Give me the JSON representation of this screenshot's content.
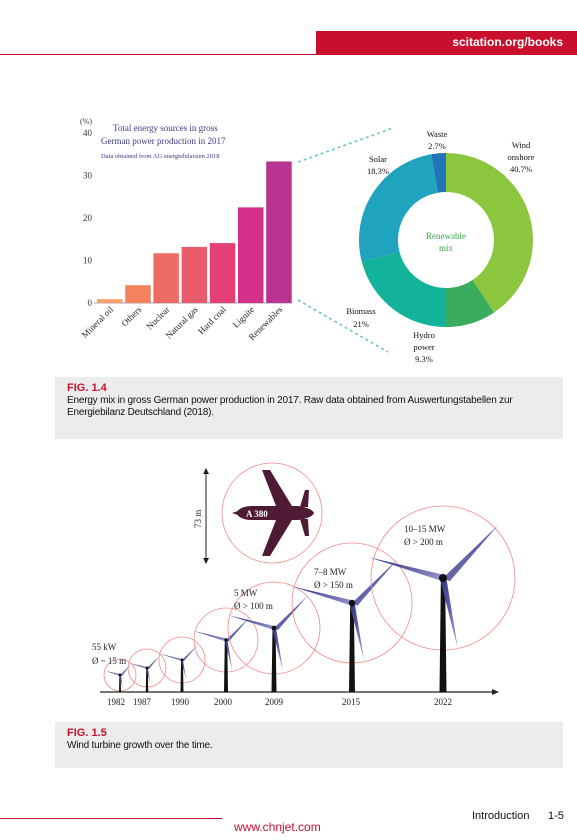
{
  "header": {
    "site": "scitation.org/books"
  },
  "fig14": {
    "label": "FIG. 1.4",
    "caption": "Energy mix in gross German power production in 2017. Raw data obtained from Auswertungstabellen zur Energiebilanz Deutschland (2018)."
  },
  "fig15": {
    "label": "FIG. 1.5",
    "caption": "Wind turbine growth over the time."
  },
  "footer": {
    "section": "Introduction",
    "page": "1-5",
    "watermark": "www.chnjet.com"
  },
  "chart_data": [
    {
      "type": "bar",
      "title": "Total energy sources in gross German power production in 2017",
      "subtitle": "Data obtained from AG energiebilanzen 2018",
      "ylabel": "(%)",
      "ylim": [
        0,
        40
      ],
      "yticks": [
        0,
        10,
        20,
        30,
        40
      ],
      "categories": [
        "Mineral oil",
        "Others",
        "Nuclear",
        "Natural gas",
        "Hard coal",
        "Lignite",
        "Renewables"
      ],
      "values": [
        0.9,
        4.2,
        11.7,
        13.2,
        14.1,
        22.5,
        33.3
      ],
      "colors": [
        "#f6a06e",
        "#f2835e",
        "#ee6b63",
        "#ea5b6c",
        "#e54076",
        "#d4308a",
        "#b8328f"
      ]
    },
    {
      "type": "pie",
      "center_label": "Renewable mix",
      "slices": [
        {
          "label": "Wind onshore",
          "value": 40.7,
          "text": "40.7%",
          "color": "#8cc63f"
        },
        {
          "label": "Hydro power",
          "value": 9.3,
          "text": "9.3%",
          "color": "#3aac5d"
        },
        {
          "label": "Biomass",
          "value": 21,
          "text": "21%",
          "color": "#13b29a"
        },
        {
          "label": "Solar",
          "value": 18.3,
          "text": "18.3%",
          "color": "#20a3bd"
        },
        {
          "label": "Waste",
          "value": 2.7,
          "text": "2.7%",
          "color": "#1f75b8"
        }
      ],
      "note": "remaining portion (Solar/other) drawn in blue"
    }
  ],
  "turbines": {
    "years": [
      "1982",
      "1987",
      "1990",
      "2000",
      "2009",
      "2015",
      "2022"
    ],
    "annotations": [
      {
        "line1": "55 kW",
        "line2": "Ø ~ 15 m"
      },
      {
        "line1": "5 MW",
        "line2": "Ø > 100 m"
      },
      {
        "line1": "7–8 MW",
        "line2": "Ø > 150 m"
      },
      {
        "line1": "10–15 MW",
        "line2": "Ø > 200 m"
      }
    ],
    "plane_label": "A 380",
    "height_label": "73 m"
  }
}
